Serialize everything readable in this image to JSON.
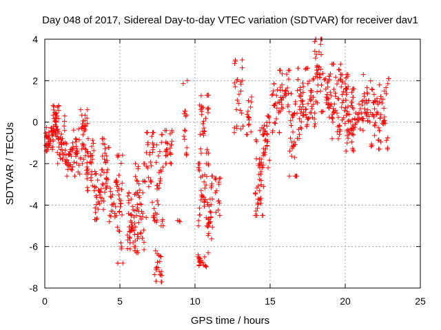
{
  "chart_data": {
    "type": "scatter",
    "title": "Day 048 of 2017, Sidereal Day-to-day VTEC variation (SDTVAR) for receiver dav1",
    "xlabel": "GPS time / hours",
    "ylabel": "SDTVAR / TECUs",
    "xlim": [
      0,
      25
    ],
    "ylim": [
      -8,
      4
    ],
    "xticks": [
      "0",
      "5",
      "10",
      "15",
      "20",
      "25"
    ],
    "yticks": [
      "-8",
      "-6",
      "-4",
      "-2",
      "0",
      "2",
      "4"
    ],
    "grid": true,
    "marker": "+",
    "marker_color": "#ff0000",
    "clusters": [
      {
        "x0": 0.0,
        "x1": 0.6,
        "y0": -1.4,
        "y1": -0.2,
        "n": 40
      },
      {
        "x0": 0.5,
        "x1": 1.0,
        "y0": -1.2,
        "y1": 0.8,
        "n": 40
      },
      {
        "x0": 0.8,
        "x1": 1.4,
        "y0": -2.0,
        "y1": 0.3,
        "n": 30
      },
      {
        "x0": 1.3,
        "x1": 2.0,
        "y0": -2.6,
        "y1": -1.0,
        "n": 30
      },
      {
        "x0": 1.9,
        "x1": 2.3,
        "y0": -2.4,
        "y1": -0.3,
        "n": 20
      },
      {
        "x0": 2.3,
        "x1": 2.9,
        "y0": -2.5,
        "y1": 0.6,
        "n": 40
      },
      {
        "x0": 2.8,
        "x1": 3.3,
        "y0": -3.3,
        "y1": -0.8,
        "n": 25
      },
      {
        "x0": 3.3,
        "x1": 3.9,
        "y0": -4.7,
        "y1": -2.3,
        "n": 35
      },
      {
        "x0": 3.8,
        "x1": 4.3,
        "y0": -3.8,
        "y1": -0.8,
        "n": 30
      },
      {
        "x0": 4.3,
        "x1": 4.8,
        "y0": -4.8,
        "y1": -2.8,
        "n": 25
      },
      {
        "x0": 4.8,
        "x1": 5.2,
        "y0": -6.8,
        "y1": -1.6,
        "n": 30
      },
      {
        "x0": 5.5,
        "x1": 6.2,
        "y0": -6.3,
        "y1": -3.4,
        "n": 50
      },
      {
        "x0": 6.0,
        "x1": 6.7,
        "y0": -6.2,
        "y1": -2.0,
        "n": 40
      },
      {
        "x0": 6.7,
        "x1": 7.3,
        "y0": -4.6,
        "y1": -0.5,
        "n": 35
      },
      {
        "x0": 7.3,
        "x1": 7.8,
        "y0": -7.7,
        "y1": -6.2,
        "n": 20
      },
      {
        "x0": 7.3,
        "x1": 7.9,
        "y0": -5.0,
        "y1": -0.6,
        "n": 30
      },
      {
        "x0": 8.0,
        "x1": 8.5,
        "y0": -2.0,
        "y1": -0.4,
        "n": 25
      },
      {
        "x0": 8.8,
        "x1": 9.0,
        "y0": -4.8,
        "y1": -4.7,
        "n": 3
      },
      {
        "x0": 9.2,
        "x1": 9.5,
        "y0": -1.6,
        "y1": 2.0,
        "n": 15
      },
      {
        "x0": 10.2,
        "x1": 10.8,
        "y0": -7.0,
        "y1": -6.4,
        "n": 20
      },
      {
        "x0": 10.2,
        "x1": 10.9,
        "y0": -5.0,
        "y1": -2.0,
        "n": 40
      },
      {
        "x0": 10.3,
        "x1": 10.9,
        "y0": -1.5,
        "y1": 1.3,
        "n": 30
      },
      {
        "x0": 10.8,
        "x1": 11.2,
        "y0": -6.3,
        "y1": -2.6,
        "n": 25
      },
      {
        "x0": 11.3,
        "x1": 11.7,
        "y0": -4.5,
        "y1": -2.7,
        "n": 15
      },
      {
        "x0": 12.6,
        "x1": 13.2,
        "y0": -0.5,
        "y1": 3.0,
        "n": 25
      },
      {
        "x0": 13.4,
        "x1": 13.9,
        "y0": -0.6,
        "y1": 1.9,
        "n": 15
      },
      {
        "x0": 14.0,
        "x1": 14.6,
        "y0": -4.5,
        "y1": -0.6,
        "n": 40
      },
      {
        "x0": 14.3,
        "x1": 15.0,
        "y0": -2.2,
        "y1": 0.3,
        "n": 35
      },
      {
        "x0": 15.1,
        "x1": 15.7,
        "y0": -0.5,
        "y1": 2.0,
        "n": 25
      },
      {
        "x0": 15.6,
        "x1": 16.3,
        "y0": 0.5,
        "y1": 2.5,
        "n": 30
      },
      {
        "x0": 16.2,
        "x1": 16.8,
        "y0": -2.6,
        "y1": 1.6,
        "n": 30
      },
      {
        "x0": 16.8,
        "x1": 17.5,
        "y0": -0.8,
        "y1": 2.6,
        "n": 40
      },
      {
        "x0": 17.4,
        "x1": 18.0,
        "y0": -0.2,
        "y1": 2.2,
        "n": 30
      },
      {
        "x0": 17.9,
        "x1": 18.5,
        "y0": 0.5,
        "y1": 4.0,
        "n": 35
      },
      {
        "x0": 18.5,
        "x1": 19.2,
        "y0": 0.0,
        "y1": 2.5,
        "n": 35
      },
      {
        "x0": 19.1,
        "x1": 19.7,
        "y0": -0.8,
        "y1": 2.8,
        "n": 30
      },
      {
        "x0": 19.6,
        "x1": 20.2,
        "y0": -0.5,
        "y1": 2.3,
        "n": 30
      },
      {
        "x0": 20.0,
        "x1": 20.6,
        "y0": -1.4,
        "y1": 1.6,
        "n": 40
      },
      {
        "x0": 20.5,
        "x1": 21.2,
        "y0": -0.4,
        "y1": 1.2,
        "n": 30
      },
      {
        "x0": 21.2,
        "x1": 21.7,
        "y0": -0.5,
        "y1": 2.5,
        "n": 25
      },
      {
        "x0": 21.7,
        "x1": 22.3,
        "y0": -1.3,
        "y1": 1.8,
        "n": 30
      },
      {
        "x0": 22.2,
        "x1": 22.9,
        "y0": -1.3,
        "y1": 2.1,
        "n": 30
      }
    ]
  }
}
